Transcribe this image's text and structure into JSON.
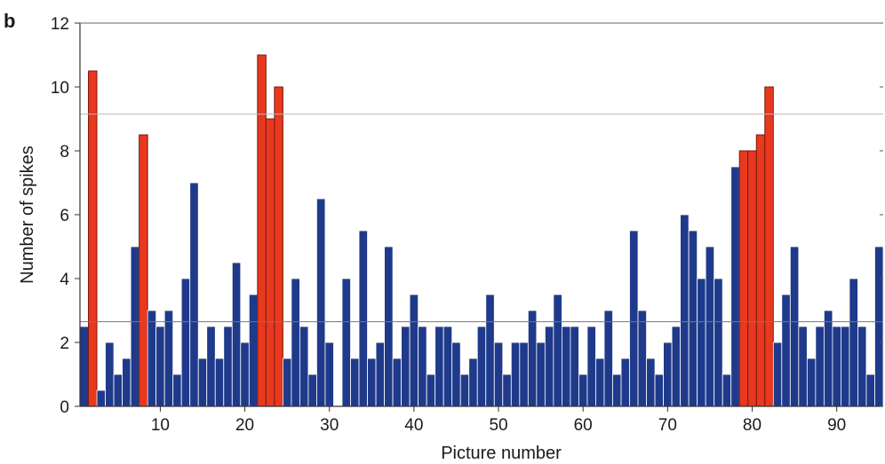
{
  "panel_label": "b",
  "chart_data": {
    "type": "bar",
    "xlabel": "Picture number",
    "ylabel": "Number of spikes",
    "ylim": [
      0,
      12
    ],
    "xlim": [
      0.5,
      95.5
    ],
    "yticks": [
      0,
      2,
      4,
      6,
      8,
      10,
      12
    ],
    "xticks": [
      10,
      20,
      30,
      40,
      50,
      60,
      70,
      80,
      90
    ],
    "reference_lines": [
      9.15,
      2.65
    ],
    "colors": {
      "normal": "#1f3a8a",
      "highlight": "#e8381e",
      "edge": "#ffffff",
      "highlight_edge": "#7a1a0e"
    },
    "x": [
      1,
      2,
      3,
      4,
      5,
      6,
      7,
      8,
      9,
      10,
      11,
      12,
      13,
      14,
      15,
      16,
      17,
      18,
      19,
      20,
      21,
      22,
      23,
      24,
      25,
      26,
      27,
      28,
      29,
      30,
      31,
      32,
      33,
      34,
      35,
      36,
      37,
      38,
      39,
      40,
      41,
      42,
      43,
      44,
      45,
      46,
      47,
      48,
      49,
      50,
      51,
      52,
      53,
      54,
      55,
      56,
      57,
      58,
      59,
      60,
      61,
      62,
      63,
      64,
      65,
      66,
      67,
      68,
      69,
      70,
      71,
      72,
      73,
      74,
      75,
      76,
      77,
      78,
      79,
      80,
      81,
      82,
      83,
      84,
      85,
      86,
      87,
      88,
      89,
      90,
      91,
      92,
      93,
      94,
      95
    ],
    "values": [
      2.5,
      10.5,
      0.5,
      2,
      1,
      1.5,
      5,
      8.5,
      3,
      2.5,
      3,
      1,
      4,
      7,
      1.5,
      2.5,
      1.5,
      2.5,
      4.5,
      2,
      3.5,
      11,
      9,
      10,
      1.5,
      4,
      2.5,
      1,
      6.5,
      2,
      0,
      4,
      1.5,
      5.5,
      1.5,
      2,
      5,
      1.5,
      2.5,
      3.5,
      2.5,
      1,
      2.5,
      2.5,
      2,
      1,
      1.5,
      2.5,
      3.5,
      2,
      1,
      2,
      2,
      3,
      2,
      2.5,
      3.5,
      2.5,
      2.5,
      1,
      2.5,
      1.5,
      3,
      1,
      1.5,
      5.5,
      3,
      1.5,
      1,
      2,
      2.5,
      6,
      5.5,
      4,
      5,
      4,
      1,
      7.5,
      8,
      8,
      8.5,
      10,
      2,
      3.5,
      5,
      2.5,
      1.5,
      2.5,
      3,
      2.5,
      2.5,
      4,
      2.5,
      1,
      5
    ],
    "highlighted": [
      2,
      8,
      22,
      23,
      24,
      79,
      80,
      81,
      82
    ]
  }
}
